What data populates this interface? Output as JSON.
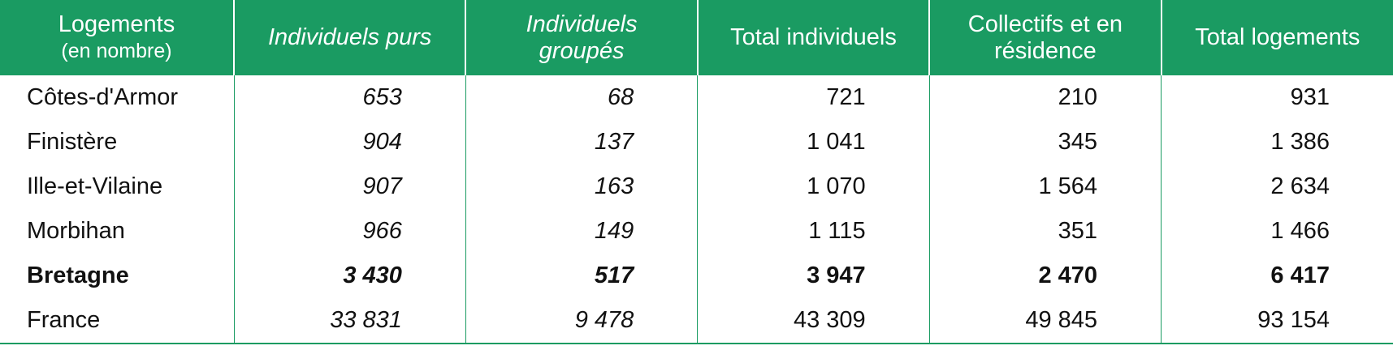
{
  "table": {
    "header": [
      [
        "Logements",
        "(en nombre)"
      ],
      [
        "Individuels purs"
      ],
      [
        "Individuels",
        "groupés"
      ],
      [
        "Total individuels"
      ],
      [
        "Collectifs et en",
        "résidence"
      ],
      [
        "Total logements"
      ]
    ],
    "rows": [
      [
        "Côtes-d'Armor",
        "653",
        "68",
        "721",
        "210",
        "931"
      ],
      [
        "Finistère",
        "904",
        "137",
        "1 041",
        "345",
        "1 386"
      ],
      [
        "Ille-et-Vilaine",
        "907",
        "163",
        "1 070",
        "1 564",
        "2 634"
      ],
      [
        "Morbihan",
        "966",
        "149",
        "1 115",
        "351",
        "1 466"
      ],
      [
        "Bretagne",
        "3 430",
        "517",
        "3 947",
        "2 470",
        "6 417"
      ],
      [
        "France",
        "33 831",
        "9 478",
        "43 309",
        "49 845",
        "93 154"
      ]
    ]
  }
}
